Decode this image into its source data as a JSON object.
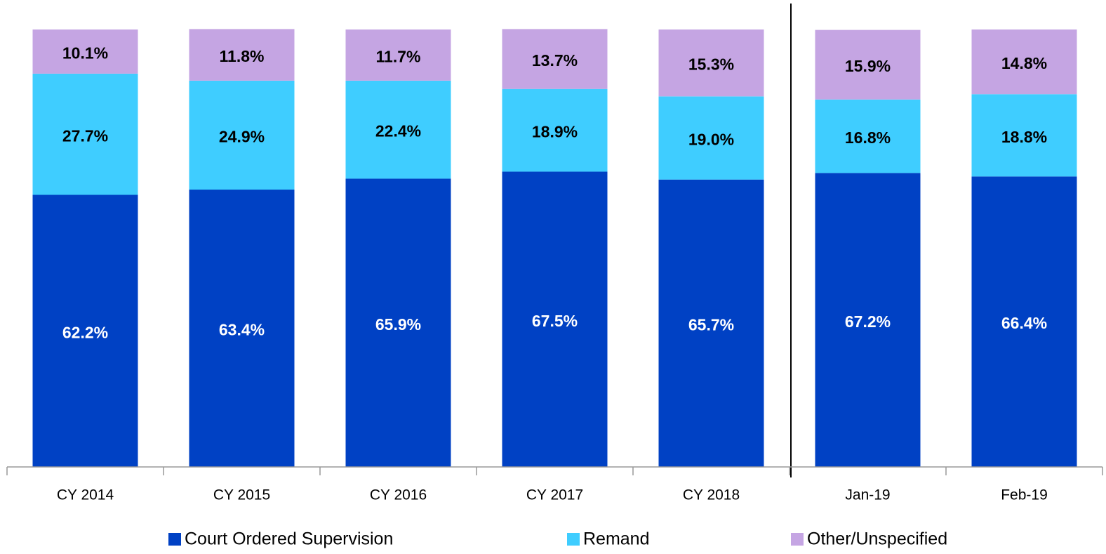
{
  "chart_data": {
    "type": "stacked_bar",
    "categories": [
      "CY 2014",
      "CY 2015",
      "CY 2016",
      "CY 2017",
      "CY 2018",
      "Jan-19",
      "Feb-19"
    ],
    "series": [
      {
        "name": "Court Ordered Supervision",
        "color": "#0041c4",
        "label_color": "#ffffff",
        "values": [
          62.2,
          63.4,
          65.9,
          67.5,
          65.7,
          67.2,
          66.4
        ],
        "value_labels": [
          "62.2%",
          "63.4%",
          "65.9%",
          "67.5%",
          "65.7%",
          "67.2%",
          "66.4%"
        ]
      },
      {
        "name": "Remand",
        "color": "#3fcdff",
        "label_color": "#000000",
        "values": [
          27.7,
          24.9,
          22.4,
          18.9,
          19.0,
          16.8,
          18.8
        ],
        "value_labels": [
          "27.7%",
          "24.9%",
          "22.4%",
          "18.9%",
          "19.0%",
          "16.8%",
          "18.8%"
        ]
      },
      {
        "name": "Other/Unspecified",
        "color": "#c5a5e3",
        "label_color": "#000000",
        "values": [
          10.1,
          11.8,
          11.7,
          13.7,
          15.3,
          15.9,
          14.8
        ],
        "value_labels": [
          "10.1%",
          "11.8%",
          "11.7%",
          "13.7%",
          "15.3%",
          "15.9%",
          "14.8%"
        ]
      }
    ],
    "ylim": [
      0,
      100
    ],
    "legend": "bottom"
  }
}
